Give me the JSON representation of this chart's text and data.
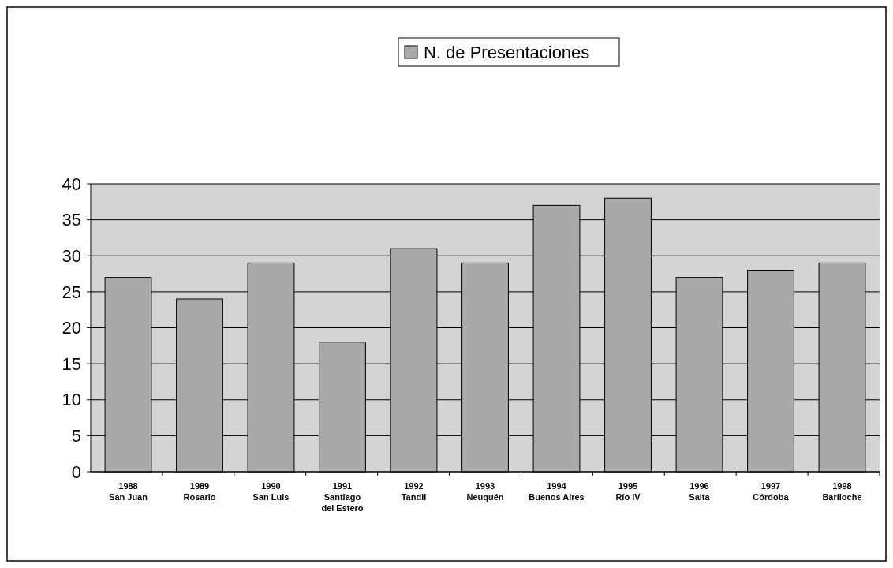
{
  "chart_data": {
    "type": "bar",
    "categories": [
      "1988\nSan Juan",
      "1989\nRosario",
      "1990\nSan Luis",
      "1991\nSantiago\ndel Estero",
      "1992\nTandil",
      "1993\nNeuquén",
      "1994\nBuenos Aires",
      "1995\nRío IV",
      "1996\nSalta",
      "1997\nCórdoba",
      "1998\nBariloche"
    ],
    "series": [
      {
        "name": "N. de Presentaciones",
        "color": "#a9a9a9",
        "values": [
          27,
          24,
          29,
          18,
          31,
          29,
          37,
          38,
          27,
          28,
          29
        ]
      }
    ],
    "ylim": [
      0,
      40
    ],
    "yticks": [
      0,
      5,
      10,
      15,
      20,
      25,
      30,
      35,
      40
    ],
    "grid": "y",
    "legend": "top"
  }
}
